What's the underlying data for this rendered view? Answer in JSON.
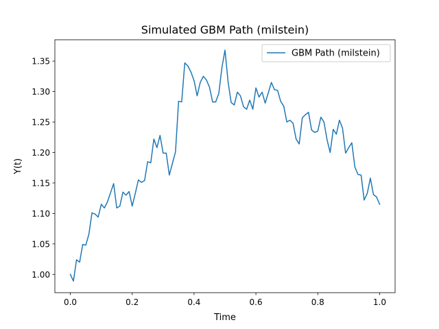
{
  "chart_data": {
    "type": "line",
    "title": "Simulated GBM Path (milstein)",
    "xlabel": "Time",
    "ylabel": "Y(t)",
    "xlim": [
      -0.05,
      1.05
    ],
    "ylim": [
      0.97,
      1.385
    ],
    "xticks": [
      0.0,
      0.2,
      0.4,
      0.6,
      0.8,
      1.0
    ],
    "xtick_labels": [
      "0.0",
      "0.2",
      "0.4",
      "0.6",
      "0.8",
      "1.0"
    ],
    "yticks": [
      1.0,
      1.05,
      1.1,
      1.15,
      1.2,
      1.25,
      1.3,
      1.35
    ],
    "ytick_labels": [
      "1.00",
      "1.05",
      "1.10",
      "1.15",
      "1.20",
      "1.25",
      "1.30",
      "1.35"
    ],
    "grid": false,
    "legend_position": "top-right",
    "series": [
      {
        "name": "GBM Path (milstein)",
        "color": "#1f77b4",
        "x": [
          0.0,
          0.01,
          0.02,
          0.03,
          0.04,
          0.05,
          0.06,
          0.07,
          0.08,
          0.09,
          0.1,
          0.11,
          0.12,
          0.13,
          0.14,
          0.15,
          0.16,
          0.17,
          0.18,
          0.19,
          0.2,
          0.21,
          0.22,
          0.23,
          0.24,
          0.25,
          0.26,
          0.27,
          0.28,
          0.29,
          0.3,
          0.31,
          0.32,
          0.33,
          0.34,
          0.35,
          0.36,
          0.37,
          0.38,
          0.39,
          0.4,
          0.41,
          0.42,
          0.43,
          0.44,
          0.45,
          0.46,
          0.47,
          0.48,
          0.49,
          0.5,
          0.51,
          0.52,
          0.53,
          0.54,
          0.55,
          0.56,
          0.57,
          0.58,
          0.59,
          0.6,
          0.61,
          0.62,
          0.63,
          0.64,
          0.65,
          0.66,
          0.67,
          0.68,
          0.69,
          0.7,
          0.71,
          0.72,
          0.73,
          0.74,
          0.75,
          0.76,
          0.77,
          0.78,
          0.79,
          0.8,
          0.81,
          0.82,
          0.83,
          0.84,
          0.85,
          0.86,
          0.87,
          0.88,
          0.89,
          0.9,
          0.91,
          0.92,
          0.93,
          0.94,
          0.95,
          0.96,
          0.97,
          0.98,
          0.99,
          1.0
        ],
        "y": [
          1.0,
          0.989,
          1.024,
          1.02,
          1.049,
          1.048,
          1.066,
          1.101,
          1.099,
          1.094,
          1.115,
          1.109,
          1.119,
          1.134,
          1.149,
          1.109,
          1.112,
          1.135,
          1.13,
          1.136,
          1.112,
          1.133,
          1.155,
          1.151,
          1.154,
          1.185,
          1.183,
          1.222,
          1.208,
          1.228,
          1.199,
          1.199,
          1.163,
          1.182,
          1.201,
          1.284,
          1.283,
          1.347,
          1.342,
          1.332,
          1.318,
          1.293,
          1.315,
          1.325,
          1.319,
          1.307,
          1.283,
          1.283,
          1.297,
          1.339,
          1.368,
          1.316,
          1.282,
          1.278,
          1.299,
          1.293,
          1.275,
          1.271,
          1.286,
          1.271,
          1.306,
          1.291,
          1.299,
          1.281,
          1.298,
          1.315,
          1.303,
          1.302,
          1.284,
          1.276,
          1.25,
          1.253,
          1.248,
          1.222,
          1.214,
          1.257,
          1.262,
          1.266,
          1.237,
          1.233,
          1.235,
          1.258,
          1.25,
          1.221,
          1.2,
          1.238,
          1.23,
          1.253,
          1.24,
          1.199,
          1.208,
          1.216,
          1.176,
          1.164,
          1.163,
          1.122,
          1.133,
          1.158,
          1.131,
          1.127,
          1.115
        ]
      }
    ]
  }
}
